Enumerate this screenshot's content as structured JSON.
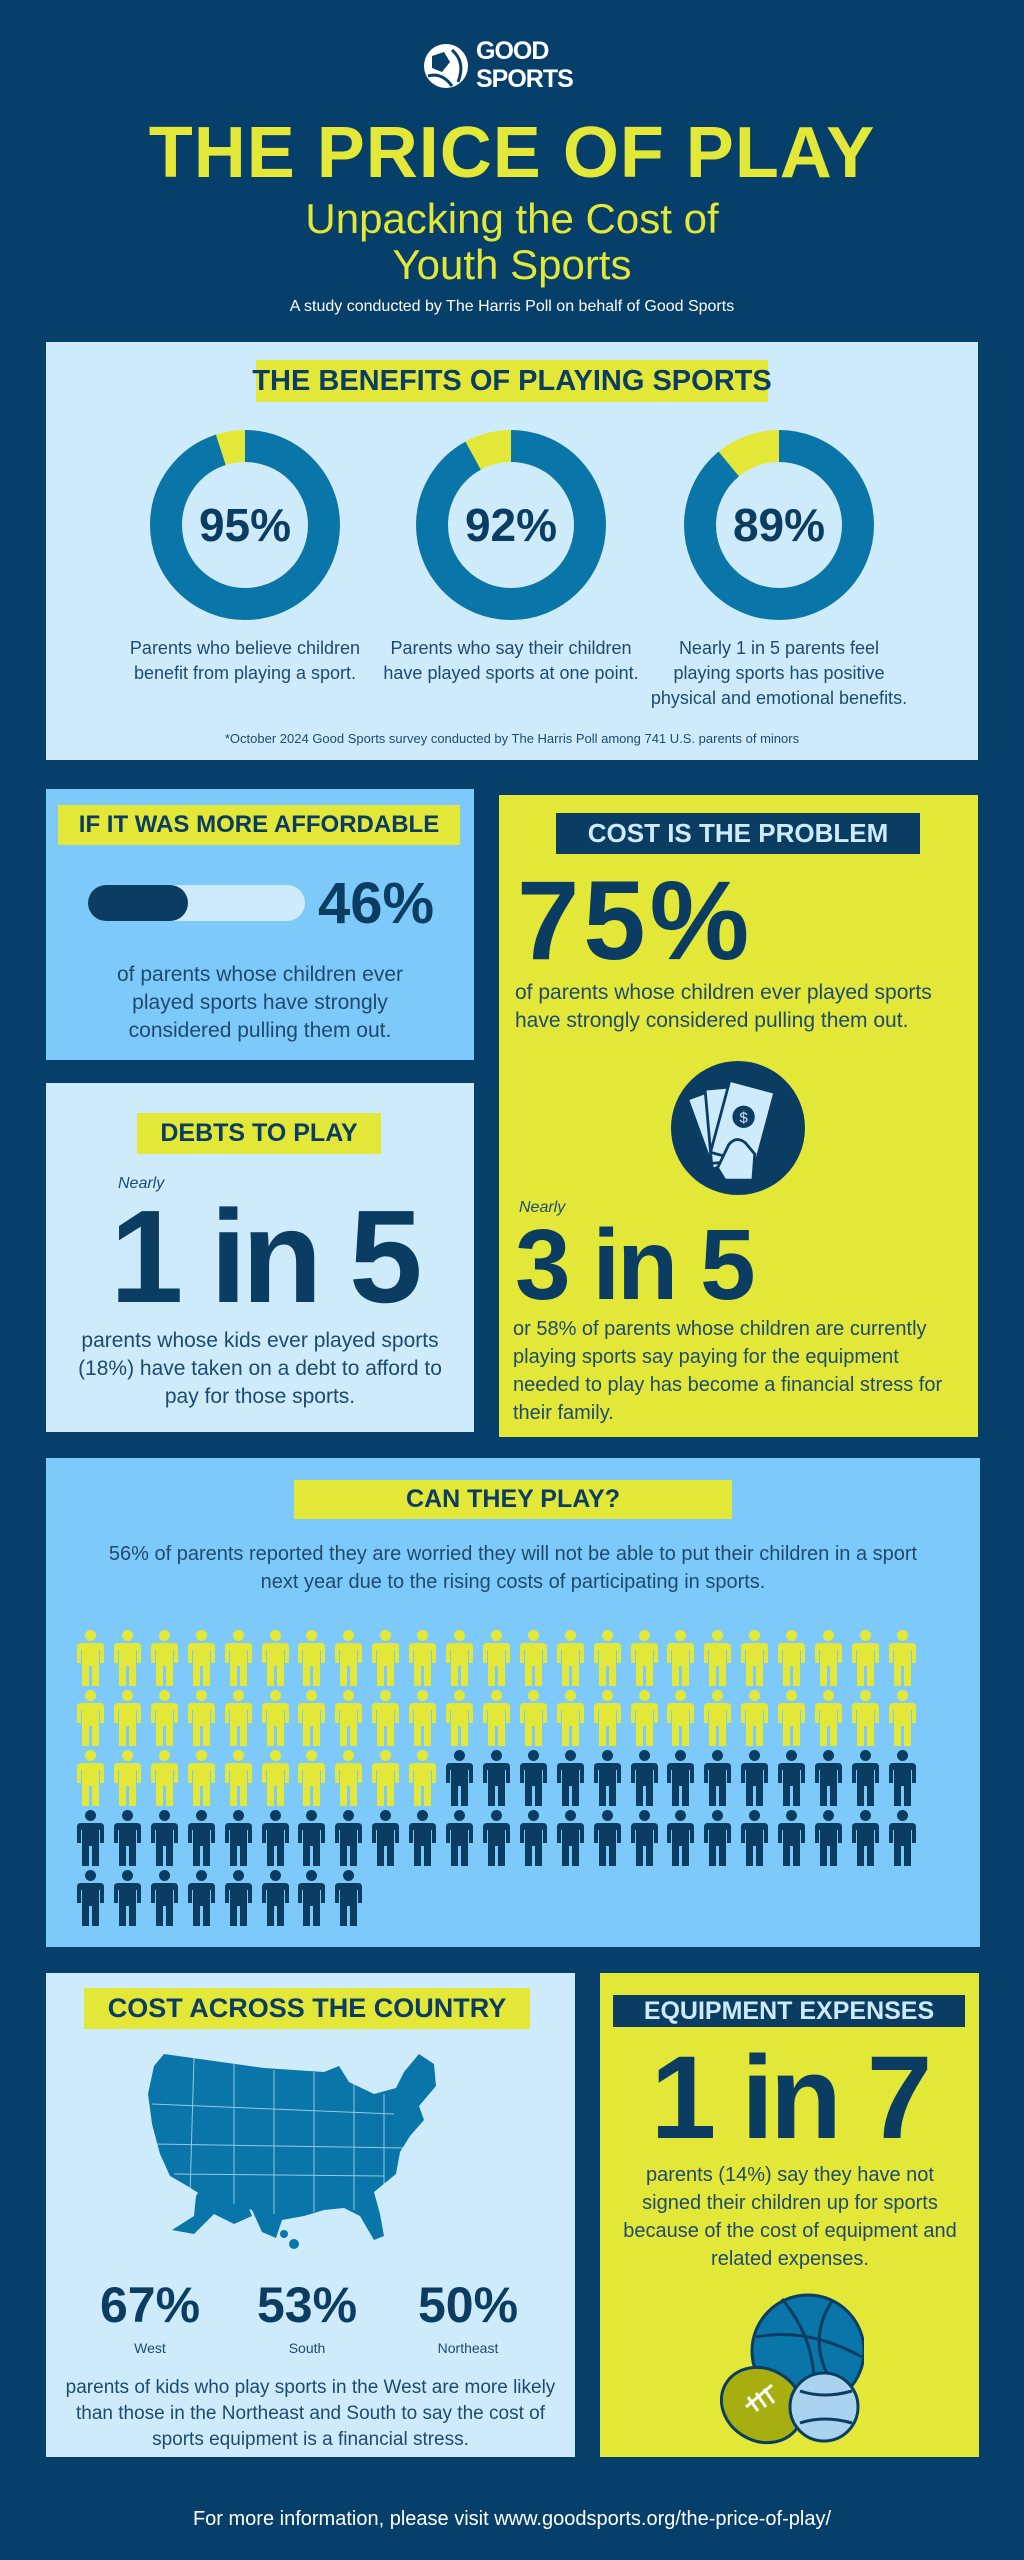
{
  "brand": {
    "line1": "GOOD",
    "line2": "SPORTS"
  },
  "header": {
    "title": "THE PRICE OF PLAY",
    "subtitle_line1": "Unpacking the Cost of",
    "subtitle_line2": "Youth Sports",
    "study": "A study conducted by The Harris Poll on behalf of Good Sports"
  },
  "colors": {
    "background": "#053f6a",
    "yellow": "#e3e838",
    "ring": "#0a75a8",
    "light": "#cdebfb",
    "mid": "#7dcafa",
    "dark": "#0b3d63"
  },
  "benefits": {
    "title": "THE BENEFITS OF PLAYING SPORTS",
    "items": [
      {
        "value": "95%",
        "percent": 95,
        "desc": "Parents who believe children benefit from playing a sport."
      },
      {
        "value": "92%",
        "percent": 92,
        "desc": "Parents who say their children have played sports at one point."
      },
      {
        "value": "89%",
        "percent": 89,
        "desc": "Nearly 1 in 5 parents feel playing sports has positive physical and emotional benefits."
      }
    ],
    "footnote": "*October 2024 Good Sports survey conducted by The Harris Poll among 741 U.S. parents of minors"
  },
  "affordable": {
    "title": "IF IT WAS MORE AFFORDABLE",
    "value": "46%",
    "percent": 46,
    "desc": "of parents whose children ever played sports have strongly considered pulling them out."
  },
  "cost_problem": {
    "title": "COST IS THE PROBLEM",
    "value": "75%",
    "desc": "of parents whose children ever played sports have strongly considered pulling them out.",
    "icon": "money-hand-icon",
    "nearly": "Nearly",
    "stat2": "3 in 5",
    "desc2": "or 58% of parents whose children are currently playing sports say paying for the equipment needed to play has become a financial stress for their family."
  },
  "debts": {
    "title": "DEBTS TO PLAY",
    "nearly": "Nearly",
    "stat": "1 in 5",
    "desc": "parents whose kids ever played sports (18%) have taken on a debt to afford to pay for those sports."
  },
  "can_play": {
    "title": "CAN THEY PLAY?",
    "desc": "56% of parents reported they are worried they will not be able to put their children in a sport next year due to the rising costs of participating in sports.",
    "highlighted": 56,
    "total": 100
  },
  "country": {
    "title": "COST ACROSS THE COUNTRY",
    "regions": [
      {
        "value": "67%",
        "name": "West"
      },
      {
        "value": "53%",
        "name": "South"
      },
      {
        "value": "50%",
        "name": "Northeast"
      }
    ],
    "desc": "parents of kids who play sports in the West are more likely than those in the Northeast and South to say the cost of sports equipment is a financial stress."
  },
  "equipment": {
    "title": "EQUIPMENT EXPENSES",
    "stat": "1 in 7",
    "desc": "parents (14%) say they have not signed their children up for sports because of the cost of equipment and related expenses.",
    "icon": "sports-balls-icon"
  },
  "footer": {
    "text": "For more information, please visit www.goodsports.org/the-price-of-play/"
  }
}
